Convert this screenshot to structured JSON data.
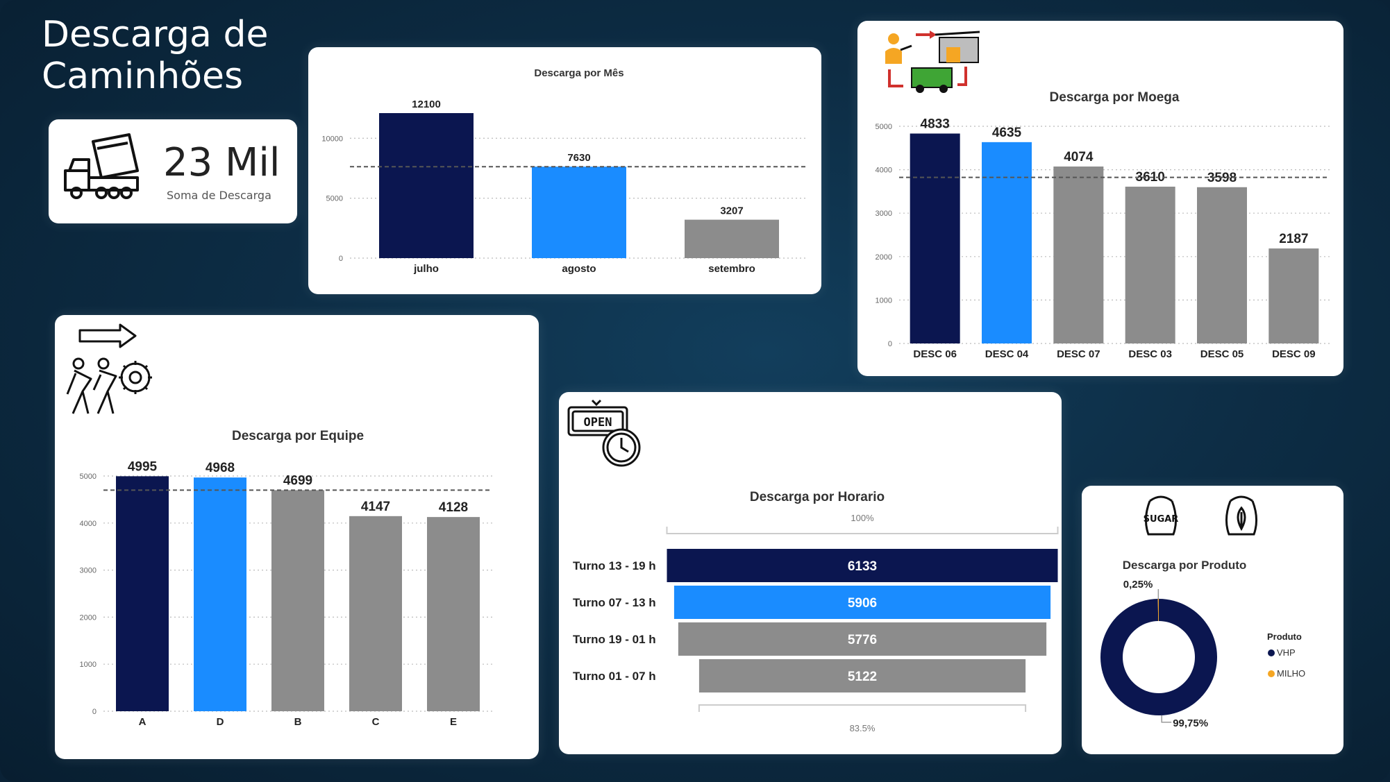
{
  "page": {
    "title_line1": "Descarga de",
    "title_line2": "Caminhões"
  },
  "colors": {
    "navy": "#0b1650",
    "blue": "#1a8cff",
    "gray": "#8c8c8c",
    "orange": "#f5a623"
  },
  "kpi": {
    "value": "23 Mil",
    "label": "Soma de Descarga",
    "icon": "dump-truck-icon"
  },
  "icons": {
    "moega": "logistics-flow-icon",
    "equipe": "team-pushing-gear-icon",
    "equipe_arrow": "arrow-right-icon",
    "horario": "open-sign-clock-icon",
    "sugar": "sugar-bag-icon",
    "milho": "corn-bag-icon"
  },
  "chart_data": [
    {
      "id": "mes",
      "type": "bar",
      "title": "Descarga por Mês",
      "categories": [
        "julho",
        "agosto",
        "setembro"
      ],
      "values": [
        12100,
        7630,
        3207
      ],
      "bar_colors": [
        "#0b1650",
        "#1a8cff",
        "#8c8c8c"
      ],
      "ylim": [
        0,
        12100
      ],
      "yticks": [
        0,
        5000,
        10000
      ],
      "average_line": 7630,
      "grid": true
    },
    {
      "id": "moega",
      "type": "bar",
      "title": "Descarga por Moega",
      "categories": [
        "DESC 06",
        "DESC 04",
        "DESC 07",
        "DESC 03",
        "DESC 05",
        "DESC 09"
      ],
      "values": [
        4833,
        4635,
        4074,
        3610,
        3598,
        2187
      ],
      "bar_colors": [
        "#0b1650",
        "#1a8cff",
        "#8c8c8c",
        "#8c8c8c",
        "#8c8c8c",
        "#8c8c8c"
      ],
      "ylim": [
        0,
        5000
      ],
      "yticks": [
        0,
        1000,
        2000,
        3000,
        4000,
        5000
      ],
      "average_line": 3823,
      "grid": true
    },
    {
      "id": "equipe",
      "type": "bar",
      "title": "Descarga por Equipe",
      "categories": [
        "A",
        "D",
        "B",
        "C",
        "E"
      ],
      "values": [
        4995,
        4968,
        4699,
        4147,
        4128
      ],
      "bar_colors": [
        "#0b1650",
        "#1a8cff",
        "#8c8c8c",
        "#8c8c8c",
        "#8c8c8c"
      ],
      "ylim": [
        0,
        5000
      ],
      "yticks": [
        0,
        1000,
        2000,
        3000,
        4000,
        5000
      ],
      "average_line": 4699,
      "grid": true
    },
    {
      "id": "horario",
      "type": "funnel",
      "title": "Descarga por Horario",
      "categories": [
        "Turno 13 - 19 h",
        "Turno 07 - 13 h",
        "Turno 19 - 01 h",
        "Turno 01 - 07 h"
      ],
      "values": [
        6133,
        5906,
        5776,
        5122
      ],
      "bar_colors": [
        "#0b1650",
        "#1a8cff",
        "#8c8c8c",
        "#8c8c8c"
      ],
      "top_label": "100%",
      "bottom_label": "83.5%"
    },
    {
      "id": "produto",
      "type": "pie",
      "title": "Descarga por Produto",
      "legend_title": "Produto",
      "categories": [
        "VHP",
        "MILHO"
      ],
      "values": [
        99.75,
        0.25
      ],
      "labels": [
        "99,75%",
        "0,25%"
      ],
      "slice_colors": [
        "#0b1650",
        "#f5a623"
      ],
      "legend": "right"
    }
  ]
}
